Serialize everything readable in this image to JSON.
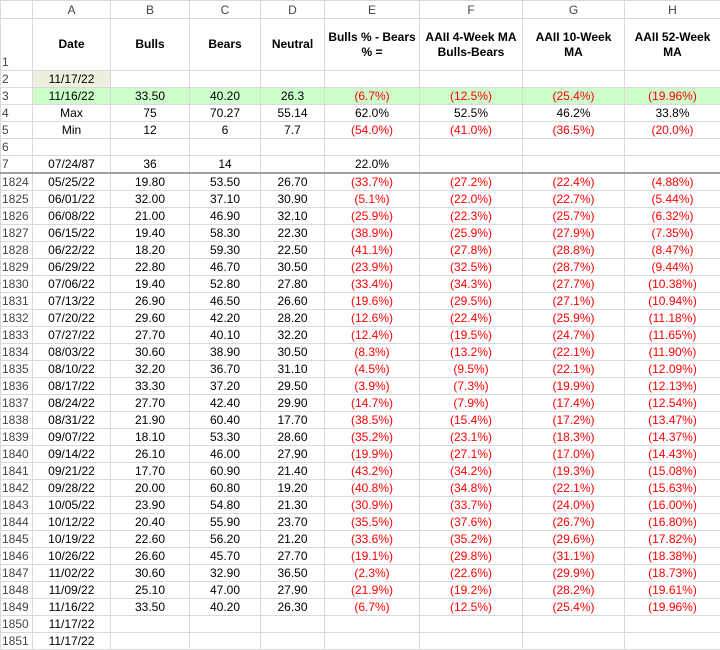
{
  "sheet": {
    "columns": [
      "A",
      "B",
      "C",
      "D",
      "E",
      "F",
      "G",
      "H"
    ],
    "rows": [
      {
        "num": 1,
        "cells": [
          "Date",
          "Bulls",
          "Bears",
          "Neutral",
          "Bulls % - Bears % =",
          "AAII 4-Week MA Bulls-Bears",
          "AAII 10-Week MA",
          "AAII 52-Week MA"
        ]
      },
      {
        "num": 2,
        "cells": [
          "11/17/22",
          null,
          null,
          null,
          null,
          null,
          null,
          null
        ]
      },
      {
        "num": 3,
        "cells": [
          "11/16/22",
          "33.50",
          "40.20",
          "26.3",
          "(6.7%)",
          "(12.5%)",
          "(25.4%)",
          "(19.96%)"
        ]
      },
      {
        "num": 4,
        "cells": [
          "Max",
          "75",
          "70.27",
          "55.14",
          "62.0%",
          "52.5%",
          "46.2%",
          "33.8%"
        ]
      },
      {
        "num": 5,
        "cells": [
          "Min",
          "12",
          "6",
          "7.7",
          "(54.0%)",
          "(41.0%)",
          "(36.5%)",
          "(20.0%)"
        ]
      },
      {
        "num": 6,
        "cells": [
          null,
          null,
          null,
          null,
          null,
          null,
          null,
          null
        ]
      },
      {
        "num": 7,
        "cells": [
          "07/24/87",
          "36",
          "14",
          null,
          "22.0%",
          null,
          null,
          null
        ]
      },
      {
        "num": 1824,
        "cells": [
          "05/25/22",
          "19.80",
          "53.50",
          "26.70",
          "(33.7%)",
          "(27.2%)",
          "(22.4%)",
          "(4.88%)"
        ]
      },
      {
        "num": 1825,
        "cells": [
          "06/01/22",
          "32.00",
          "37.10",
          "30.90",
          "(5.1%)",
          "(22.0%)",
          "(22.7%)",
          "(5.44%)"
        ]
      },
      {
        "num": 1826,
        "cells": [
          "06/08/22",
          "21.00",
          "46.90",
          "32.10",
          "(25.9%)",
          "(22.3%)",
          "(25.7%)",
          "(6.32%)"
        ]
      },
      {
        "num": 1827,
        "cells": [
          "06/15/22",
          "19.40",
          "58.30",
          "22.30",
          "(38.9%)",
          "(25.9%)",
          "(27.9%)",
          "(7.35%)"
        ]
      },
      {
        "num": 1828,
        "cells": [
          "06/22/22",
          "18.20",
          "59.30",
          "22.50",
          "(41.1%)",
          "(27.8%)",
          "(28.8%)",
          "(8.47%)"
        ]
      },
      {
        "num": 1829,
        "cells": [
          "06/29/22",
          "22.80",
          "46.70",
          "30.50",
          "(23.9%)",
          "(32.5%)",
          "(28.7%)",
          "(9.44%)"
        ]
      },
      {
        "num": 1830,
        "cells": [
          "07/06/22",
          "19.40",
          "52.80",
          "27.80",
          "(33.4%)",
          "(34.3%)",
          "(27.7%)",
          "(10.38%)"
        ]
      },
      {
        "num": 1831,
        "cells": [
          "07/13/22",
          "26.90",
          "46.50",
          "26.60",
          "(19.6%)",
          "(29.5%)",
          "(27.1%)",
          "(10.94%)"
        ]
      },
      {
        "num": 1832,
        "cells": [
          "07/20/22",
          "29.60",
          "42.20",
          "28.20",
          "(12.6%)",
          "(22.4%)",
          "(25.9%)",
          "(11.18%)"
        ]
      },
      {
        "num": 1833,
        "cells": [
          "07/27/22",
          "27.70",
          "40.10",
          "32.20",
          "(12.4%)",
          "(19.5%)",
          "(24.7%)",
          "(11.65%)"
        ]
      },
      {
        "num": 1834,
        "cells": [
          "08/03/22",
          "30.60",
          "38.90",
          "30.50",
          "(8.3%)",
          "(13.2%)",
          "(22.1%)",
          "(11.90%)"
        ]
      },
      {
        "num": 1835,
        "cells": [
          "08/10/22",
          "32.20",
          "36.70",
          "31.10",
          "(4.5%)",
          "(9.5%)",
          "(22.1%)",
          "(12.09%)"
        ]
      },
      {
        "num": 1836,
        "cells": [
          "08/17/22",
          "33.30",
          "37.20",
          "29.50",
          "(3.9%)",
          "(7.3%)",
          "(19.9%)",
          "(12.13%)"
        ]
      },
      {
        "num": 1837,
        "cells": [
          "08/24/22",
          "27.70",
          "42.40",
          "29.90",
          "(14.7%)",
          "(7.9%)",
          "(17.4%)",
          "(12.54%)"
        ]
      },
      {
        "num": 1838,
        "cells": [
          "08/31/22",
          "21.90",
          "60.40",
          "17.70",
          "(38.5%)",
          "(15.4%)",
          "(17.2%)",
          "(13.47%)"
        ]
      },
      {
        "num": 1839,
        "cells": [
          "09/07/22",
          "18.10",
          "53.30",
          "28.60",
          "(35.2%)",
          "(23.1%)",
          "(18.3%)",
          "(14.37%)"
        ]
      },
      {
        "num": 1840,
        "cells": [
          "09/14/22",
          "26.10",
          "46.00",
          "27.90",
          "(19.9%)",
          "(27.1%)",
          "(17.0%)",
          "(14.43%)"
        ]
      },
      {
        "num": 1841,
        "cells": [
          "09/21/22",
          "17.70",
          "60.90",
          "21.40",
          "(43.2%)",
          "(34.2%)",
          "(19.3%)",
          "(15.08%)"
        ]
      },
      {
        "num": 1842,
        "cells": [
          "09/28/22",
          "20.00",
          "60.80",
          "19.20",
          "(40.8%)",
          "(34.8%)",
          "(22.1%)",
          "(15.63%)"
        ]
      },
      {
        "num": 1843,
        "cells": [
          "10/05/22",
          "23.90",
          "54.80",
          "21.30",
          "(30.9%)",
          "(33.7%)",
          "(24.0%)",
          "(16.00%)"
        ]
      },
      {
        "num": 1844,
        "cells": [
          "10/12/22",
          "20.40",
          "55.90",
          "23.70",
          "(35.5%)",
          "(37.6%)",
          "(26.7%)",
          "(16.80%)"
        ]
      },
      {
        "num": 1845,
        "cells": [
          "10/19/22",
          "22.60",
          "56.20",
          "21.20",
          "(33.6%)",
          "(35.2%)",
          "(29.6%)",
          "(17.82%)"
        ]
      },
      {
        "num": 1846,
        "cells": [
          "10/26/22",
          "26.60",
          "45.70",
          "27.70",
          "(19.1%)",
          "(29.8%)",
          "(31.1%)",
          "(18.38%)"
        ]
      },
      {
        "num": 1847,
        "cells": [
          "11/02/22",
          "30.60",
          "32.90",
          "36.50",
          "(2.3%)",
          "(22.6%)",
          "(29.9%)",
          "(18.73%)"
        ]
      },
      {
        "num": 1848,
        "cells": [
          "11/09/22",
          "25.10",
          "47.00",
          "27.90",
          "(21.9%)",
          "(19.2%)",
          "(28.2%)",
          "(19.61%)"
        ]
      },
      {
        "num": 1849,
        "cells": [
          "11/16/22",
          "33.50",
          "40.20",
          "26.30",
          "(6.7%)",
          "(12.5%)",
          "(25.4%)",
          "(19.96%)"
        ]
      },
      {
        "num": 1850,
        "cells": [
          "11/17/22",
          null,
          null,
          null,
          null,
          null,
          null,
          null
        ]
      },
      {
        "num": 1851,
        "cells": [
          "11/17/22",
          null,
          null,
          null,
          null,
          null,
          null,
          null
        ]
      }
    ]
  }
}
